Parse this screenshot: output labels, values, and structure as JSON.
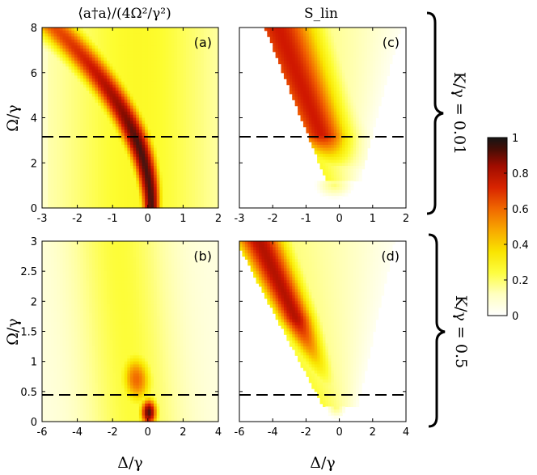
{
  "chart_data": {
    "type": "heatmap",
    "titles": {
      "left": "⟨a†a⟩/(4Ω²/γ²)",
      "right": "S_lin"
    },
    "colorbar": {
      "min": 0,
      "max": 1,
      "ticks": [
        "0",
        "0.2",
        "0.4",
        "0.6",
        "0.8",
        "1"
      ],
      "colormap": [
        "#ffffff",
        "#ffffa0",
        "#fdfd30",
        "#f9e600",
        "#f8a000",
        "#f05a00",
        "#d01800",
        "#8a0c00",
        "#1a1a1a"
      ]
    },
    "rows": [
      {
        "bracket_label": "K/γ = 0.01",
        "xlim": [
          -3,
          2
        ],
        "ylim": [
          0,
          8
        ],
        "xticks": [
          "-3",
          "-2",
          "-1",
          "0",
          "1",
          "2"
        ],
        "yticks": [
          "0",
          "2",
          "4",
          "6",
          "8"
        ],
        "ylabel": "Ω/γ",
        "dashed_line_y": 3.15,
        "panels": [
          {
            "label": "(a)",
            "quantity": "photon number"
          },
          {
            "label": "(c)",
            "quantity": "S_lin"
          }
        ]
      },
      {
        "bracket_label": "K/γ = 0.5",
        "xlim": [
          -6,
          4
        ],
        "ylim": [
          0,
          3
        ],
        "xticks": [
          "-6",
          "-4",
          "-2",
          "0",
          "2",
          "4"
        ],
        "yticks": [
          "0",
          "0.5",
          "1",
          "1.5",
          "2",
          "2.5",
          "3"
        ],
        "ylabel": "Ω/γ",
        "xlabel": "Δ/γ",
        "dashed_line_y": 0.45,
        "panels": [
          {
            "label": "(b)",
            "quantity": "photon number"
          },
          {
            "label": "(d)",
            "quantity": "S_lin"
          }
        ]
      }
    ]
  }
}
